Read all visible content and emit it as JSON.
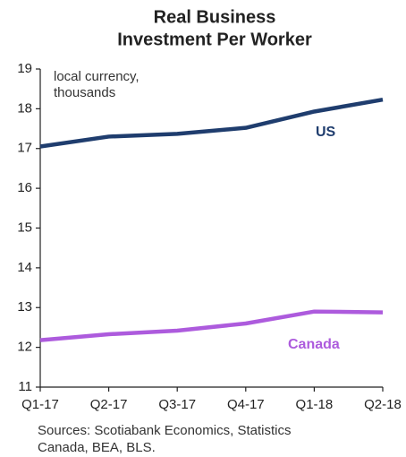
{
  "chart_data": {
    "type": "line",
    "title": [
      "Real Business",
      "Investment Per Worker"
    ],
    "y_annotation": [
      "local currency,",
      "thousands"
    ],
    "source": [
      "Sources: Scotiabank Economics, Statistics",
      "Canada, BEA, BLS."
    ],
    "categories": [
      "Q1-17",
      "Q2-17",
      "Q3-17",
      "Q4-17",
      "Q1-18",
      "Q2-18"
    ],
    "series": [
      {
        "name": "US",
        "color": "#1f3d6e",
        "values": [
          17.05,
          17.3,
          17.37,
          17.52,
          17.93,
          18.23
        ]
      },
      {
        "name": "Canada",
        "color": "#ad5bdd",
        "values": [
          12.18,
          12.33,
          12.42,
          12.6,
          12.9,
          12.88
        ]
      }
    ],
    "ylim": [
      11,
      19
    ],
    "yticks": [
      11,
      12,
      13,
      14,
      15,
      16,
      17,
      18,
      19
    ],
    "grid": false
  }
}
